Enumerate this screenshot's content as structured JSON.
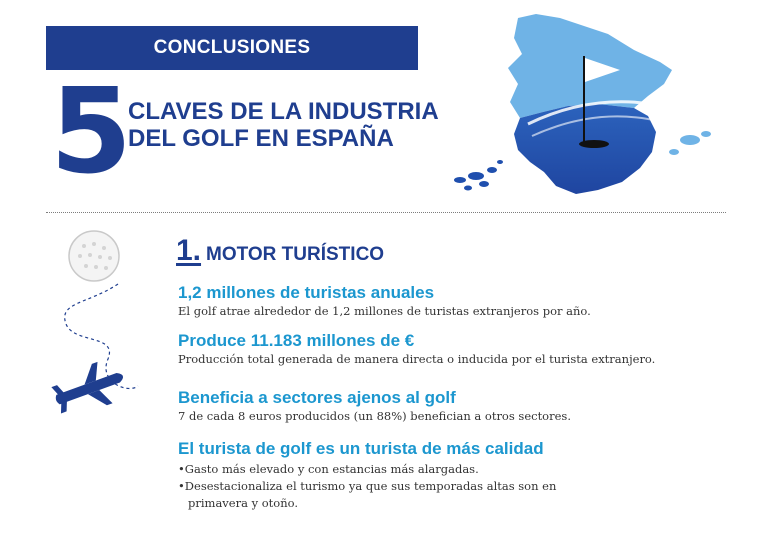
{
  "header": {
    "banner_label": "CONCLUSIONES",
    "big_number": "5",
    "title": "CLAVES DE LA INDUSTRIA DEL GOLF EN ESPAÑA"
  },
  "section": {
    "number": "1.",
    "title": "MOTOR TURÍSTICO"
  },
  "points": [
    {
      "heading": "1,2 millones de turistas anuales",
      "text": "El golf atrae alrededor de 1,2 millones de turistas extranjeros por año."
    },
    {
      "heading": "Produce 11.183 millones de €",
      "text": "Producción total generada de manera directa o inducida por el turista extranjero."
    },
    {
      "heading": "Beneficia a sectores ajenos al golf",
      "text": "7 de cada 8 euros producidos (un 88%) benefician a otros sectores."
    },
    {
      "heading": "El turista de golf es un turista de más calidad",
      "bullets": [
        "Gasto más elevado y con estancias más alargadas.",
        "Desestacionaliza el turismo ya que sus temporadas altas son en primavera y otoño."
      ]
    }
  ],
  "colors": {
    "navy": "#1f3e8f",
    "accent_blue": "#1c97cf",
    "map_light": "#6fb3e6",
    "map_dark": "#1f4fae"
  },
  "icons": [
    "golf-ball-icon",
    "airplane-icon",
    "golf-flag-icon",
    "spain-map-icon"
  ]
}
